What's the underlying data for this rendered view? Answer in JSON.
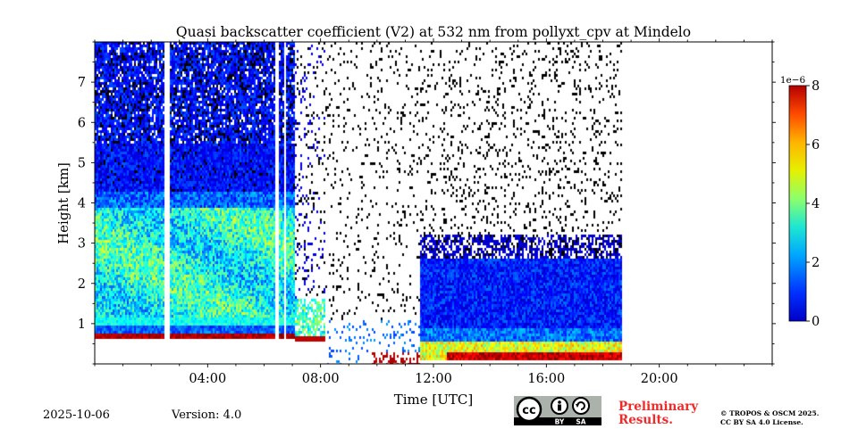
{
  "chart_data": {
    "type": "heatmap",
    "title": "Quasi backscatter coefficient (V2) at 532 nm from pollyxt_cpv at Mindelo",
    "xlabel": "Time [UTC]",
    "ylabel": "Height [km]",
    "x_range_hours": [
      0,
      24
    ],
    "y_range_km": [
      0,
      8
    ],
    "x_tick_labels": [
      "04:00",
      "08:00",
      "12:00",
      "16:00",
      "20:00"
    ],
    "x_tick_hours": [
      4,
      8,
      12,
      16,
      20
    ],
    "y_tick_labels": [
      "1",
      "2",
      "3",
      "4",
      "5",
      "6",
      "7"
    ],
    "y_tick_values": [
      1,
      2,
      3,
      4,
      5,
      6,
      7
    ],
    "colorbar": {
      "min": 0,
      "max": 8e-06,
      "exponent_label": "1e−6",
      "tick_labels": [
        "0",
        "2",
        "4",
        "6",
        "8"
      ],
      "tick_values": [
        0,
        2,
        4,
        6,
        8
      ],
      "colormap": "jet"
    },
    "data_end_hour": 18.7,
    "gaps_hours": [
      [
        2.5,
        2.65
      ],
      [
        6.4,
        6.52
      ],
      [
        6.7,
        6.78
      ]
    ],
    "layers": [
      {
        "description": "overlap / near-range max",
        "hours": [
          0,
          8
        ],
        "height_km": [
          0.6,
          0.75
        ],
        "value_e6": 7.5
      },
      {
        "description": "aerosol layer",
        "hours": [
          0,
          7
        ],
        "height_km": [
          0.8,
          4.0
        ],
        "value_e6": 3.5
      },
      {
        "description": "aerosol layer (evening)",
        "hours": [
          11.5,
          18.7
        ],
        "height_km": [
          0.5,
          2.8
        ],
        "value_e6": 2.0
      },
      {
        "description": "surface layer max",
        "hours": [
          12.5,
          18.7
        ],
        "height_km": [
          0.0,
          0.3
        ],
        "value_e6": 7.5
      }
    ]
  },
  "footer": {
    "date": "2025-10-06",
    "version": "Version: 4.0",
    "preliminary_line1": "Preliminary",
    "preliminary_line2": "Results.",
    "copyright_line1": "© TROPOS & OSCM 2025.",
    "copyright_line2": "CC BY SA 4.0 License.",
    "badge_by": "BY",
    "badge_sa": "SA",
    "badge_cc": "cc"
  },
  "colors": {
    "preliminary": "#ee2a2a",
    "badge_bg": "#aab2ab"
  }
}
